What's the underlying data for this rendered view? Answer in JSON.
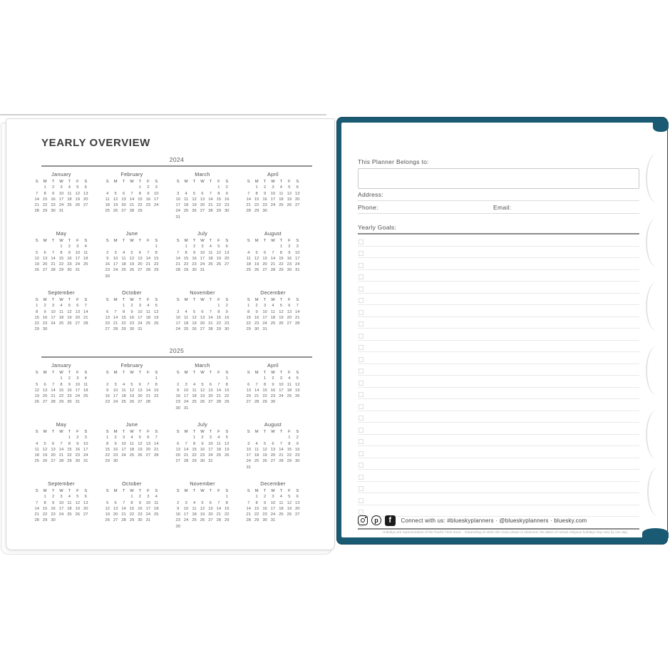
{
  "page_title": "YEARLY OVERVIEW",
  "day_headers": [
    "S",
    "M",
    "T",
    "W",
    "T",
    "F",
    "S"
  ],
  "years": [
    {
      "label": "2024",
      "months": [
        {
          "name": "January",
          "start": 1,
          "days": 31
        },
        {
          "name": "February",
          "start": 4,
          "days": 29
        },
        {
          "name": "March",
          "start": 5,
          "days": 31
        },
        {
          "name": "April",
          "start": 1,
          "days": 30
        },
        {
          "name": "May",
          "start": 3,
          "days": 31
        },
        {
          "name": "June",
          "start": 6,
          "days": 30
        },
        {
          "name": "July",
          "start": 1,
          "days": 31
        },
        {
          "name": "August",
          "start": 4,
          "days": 31
        },
        {
          "name": "September",
          "start": 0,
          "days": 30
        },
        {
          "name": "October",
          "start": 2,
          "days": 31
        },
        {
          "name": "November",
          "start": 5,
          "days": 30
        },
        {
          "name": "December",
          "start": 0,
          "days": 31
        }
      ]
    },
    {
      "label": "2025",
      "months": [
        {
          "name": "January",
          "start": 3,
          "days": 31
        },
        {
          "name": "February",
          "start": 6,
          "days": 28
        },
        {
          "name": "March",
          "start": 6,
          "days": 31
        },
        {
          "name": "April",
          "start": 2,
          "days": 30
        },
        {
          "name": "May",
          "start": 4,
          "days": 31
        },
        {
          "name": "June",
          "start": 0,
          "days": 30
        },
        {
          "name": "July",
          "start": 2,
          "days": 31
        },
        {
          "name": "August",
          "start": 5,
          "days": 31
        },
        {
          "name": "September",
          "start": 1,
          "days": 30
        },
        {
          "name": "October",
          "start": 3,
          "days": 31
        },
        {
          "name": "November",
          "start": 6,
          "days": 30
        },
        {
          "name": "December",
          "start": 1,
          "days": 31
        }
      ]
    }
  ],
  "right_page": {
    "belongs_label": "This Planner Belongs to:",
    "address_label": "Address:",
    "phone_label": "Phone:",
    "email_label": "Email:",
    "goals_label": "Yearly Goals:",
    "goal_line_count": 25,
    "footer": {
      "connect_text": "Connect with us: #blueskyplanners · @blueskyplanners · bluesky.com",
      "disclaimer": "Holidays are representative of the Pacific Time Zone.   ·   Depending on when the moon phase is observed, the dates of certain religious holidays may vary by one day.",
      "icons": [
        "instagram-icon",
        "pinterest-icon",
        "facebook-icon"
      ]
    }
  },
  "binding": {
    "coil_count": 21
  },
  "colors": {
    "cover_teal": "#1a5a72",
    "coil_gold": "#cdbb72",
    "title_text": "#3c3c3c",
    "rule_grey": "#8a8a8a"
  }
}
